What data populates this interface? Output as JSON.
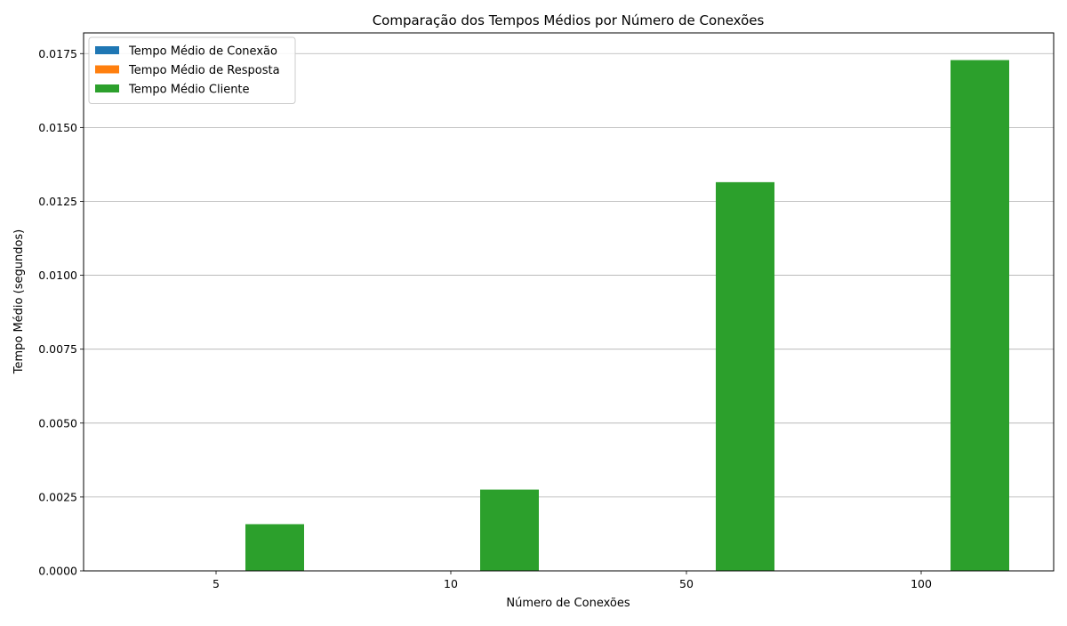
{
  "chart_data": {
    "type": "bar",
    "title": "Comparação dos Tempos Médios por Número de Conexões",
    "xlabel": "Número de Conexões",
    "ylabel": "Tempo Médio (segundos)",
    "categories": [
      "5",
      "10",
      "50",
      "100"
    ],
    "ylim": [
      0,
      0.0182
    ],
    "yticks": [
      "0.0000",
      "0.0025",
      "0.0050",
      "0.0075",
      "0.0100",
      "0.0125",
      "0.0150",
      "0.0175"
    ],
    "grid": "y",
    "legend_position": "top-left",
    "series": [
      {
        "name": "Tempo Médio de Conexão",
        "color": "#1f77b4",
        "values": [
          0.0,
          0.0,
          0.0,
          0.0
        ]
      },
      {
        "name": "Tempo Médio de Resposta",
        "color": "#ff7f0e",
        "values": [
          0.0,
          0.0,
          0.0,
          0.0
        ]
      },
      {
        "name": "Tempo Médio Cliente",
        "color": "#2ca02c",
        "values": [
          0.00158,
          0.00275,
          0.01315,
          0.01728
        ]
      }
    ]
  }
}
